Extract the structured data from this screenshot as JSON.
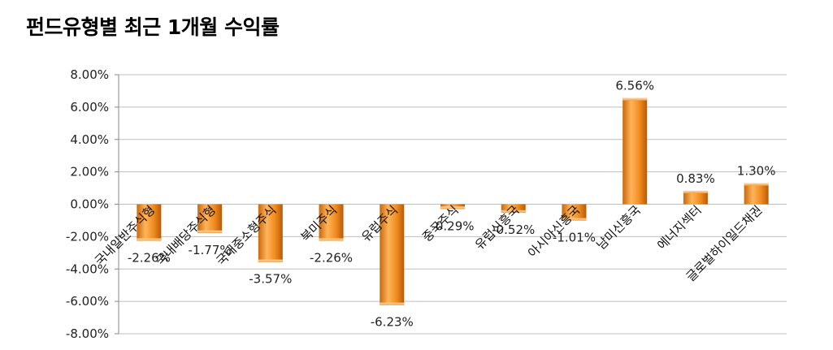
{
  "header": {
    "title": "펀드유형별 최근 1개월 수익률"
  },
  "chart_data": {
    "type": "bar",
    "title": "펀드유형별 최근 1개월 수익률",
    "xlabel": "",
    "ylabel": "",
    "categories": [
      "국내일반주식형",
      "국내배당주식형",
      "국내중소형주식",
      "북미주식",
      "유럽주식",
      "중국주식",
      "유럽신흥국",
      "아시아신흥국",
      "남미신흥국",
      "에너지섹터",
      "글로벌하이일드채권"
    ],
    "values": [
      -2.26,
      -1.77,
      -3.57,
      -2.26,
      -6.23,
      -0.29,
      -0.52,
      -1.01,
      6.56,
      0.83,
      1.3
    ],
    "data_labels": [
      "-2.26%",
      "-1.77%",
      "-3.57%",
      "-2.26%",
      "-6.23%",
      "-0.29%",
      "-0.52%",
      "-1.01%",
      "6.56%",
      "0.83%",
      "1.30%"
    ],
    "y_ticks": [
      "8.00%",
      "6.00%",
      "4.00%",
      "2.00%",
      "0.00%",
      "-2.00%",
      "-4.00%",
      "-6.00%",
      "-8.00%"
    ],
    "ylim": [
      -8,
      8
    ],
    "y_step": 2,
    "grid": true,
    "legend": "none",
    "colors": {
      "bar_light": "#ffb45a",
      "bar_mid": "#f08a1e",
      "bar_dark": "#b85a08",
      "grid": "#bfbfbf"
    }
  }
}
